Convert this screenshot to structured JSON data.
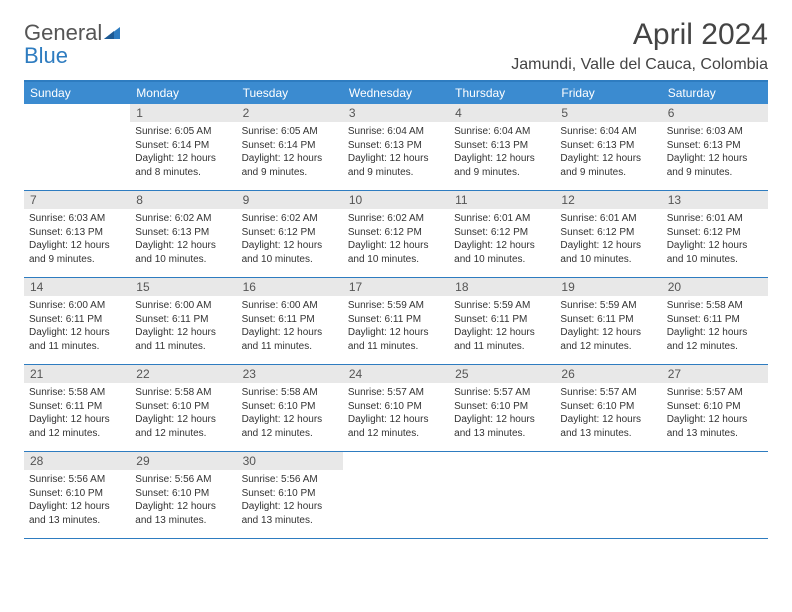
{
  "logo": {
    "word1": "General",
    "word2": "Blue"
  },
  "title": "April 2024",
  "location": "Jamundi, Valle del Cauca, Colombia",
  "colors": {
    "header_bg": "#3b8bd0",
    "header_border": "#2e7cc0",
    "daynum_bg": "#e8e8e8",
    "text": "#333333"
  },
  "weekdays": [
    "Sunday",
    "Monday",
    "Tuesday",
    "Wednesday",
    "Thursday",
    "Friday",
    "Saturday"
  ],
  "weeks": [
    [
      null,
      {
        "n": "1",
        "sr": "Sunrise: 6:05 AM",
        "ss": "Sunset: 6:14 PM",
        "d1": "Daylight: 12 hours",
        "d2": "and 8 minutes."
      },
      {
        "n": "2",
        "sr": "Sunrise: 6:05 AM",
        "ss": "Sunset: 6:14 PM",
        "d1": "Daylight: 12 hours",
        "d2": "and 9 minutes."
      },
      {
        "n": "3",
        "sr": "Sunrise: 6:04 AM",
        "ss": "Sunset: 6:13 PM",
        "d1": "Daylight: 12 hours",
        "d2": "and 9 minutes."
      },
      {
        "n": "4",
        "sr": "Sunrise: 6:04 AM",
        "ss": "Sunset: 6:13 PM",
        "d1": "Daylight: 12 hours",
        "d2": "and 9 minutes."
      },
      {
        "n": "5",
        "sr": "Sunrise: 6:04 AM",
        "ss": "Sunset: 6:13 PM",
        "d1": "Daylight: 12 hours",
        "d2": "and 9 minutes."
      },
      {
        "n": "6",
        "sr": "Sunrise: 6:03 AM",
        "ss": "Sunset: 6:13 PM",
        "d1": "Daylight: 12 hours",
        "d2": "and 9 minutes."
      }
    ],
    [
      {
        "n": "7",
        "sr": "Sunrise: 6:03 AM",
        "ss": "Sunset: 6:13 PM",
        "d1": "Daylight: 12 hours",
        "d2": "and 9 minutes."
      },
      {
        "n": "8",
        "sr": "Sunrise: 6:02 AM",
        "ss": "Sunset: 6:13 PM",
        "d1": "Daylight: 12 hours",
        "d2": "and 10 minutes."
      },
      {
        "n": "9",
        "sr": "Sunrise: 6:02 AM",
        "ss": "Sunset: 6:12 PM",
        "d1": "Daylight: 12 hours",
        "d2": "and 10 minutes."
      },
      {
        "n": "10",
        "sr": "Sunrise: 6:02 AM",
        "ss": "Sunset: 6:12 PM",
        "d1": "Daylight: 12 hours",
        "d2": "and 10 minutes."
      },
      {
        "n": "11",
        "sr": "Sunrise: 6:01 AM",
        "ss": "Sunset: 6:12 PM",
        "d1": "Daylight: 12 hours",
        "d2": "and 10 minutes."
      },
      {
        "n": "12",
        "sr": "Sunrise: 6:01 AM",
        "ss": "Sunset: 6:12 PM",
        "d1": "Daylight: 12 hours",
        "d2": "and 10 minutes."
      },
      {
        "n": "13",
        "sr": "Sunrise: 6:01 AM",
        "ss": "Sunset: 6:12 PM",
        "d1": "Daylight: 12 hours",
        "d2": "and 10 minutes."
      }
    ],
    [
      {
        "n": "14",
        "sr": "Sunrise: 6:00 AM",
        "ss": "Sunset: 6:11 PM",
        "d1": "Daylight: 12 hours",
        "d2": "and 11 minutes."
      },
      {
        "n": "15",
        "sr": "Sunrise: 6:00 AM",
        "ss": "Sunset: 6:11 PM",
        "d1": "Daylight: 12 hours",
        "d2": "and 11 minutes."
      },
      {
        "n": "16",
        "sr": "Sunrise: 6:00 AM",
        "ss": "Sunset: 6:11 PM",
        "d1": "Daylight: 12 hours",
        "d2": "and 11 minutes."
      },
      {
        "n": "17",
        "sr": "Sunrise: 5:59 AM",
        "ss": "Sunset: 6:11 PM",
        "d1": "Daylight: 12 hours",
        "d2": "and 11 minutes."
      },
      {
        "n": "18",
        "sr": "Sunrise: 5:59 AM",
        "ss": "Sunset: 6:11 PM",
        "d1": "Daylight: 12 hours",
        "d2": "and 11 minutes."
      },
      {
        "n": "19",
        "sr": "Sunrise: 5:59 AM",
        "ss": "Sunset: 6:11 PM",
        "d1": "Daylight: 12 hours",
        "d2": "and 12 minutes."
      },
      {
        "n": "20",
        "sr": "Sunrise: 5:58 AM",
        "ss": "Sunset: 6:11 PM",
        "d1": "Daylight: 12 hours",
        "d2": "and 12 minutes."
      }
    ],
    [
      {
        "n": "21",
        "sr": "Sunrise: 5:58 AM",
        "ss": "Sunset: 6:11 PM",
        "d1": "Daylight: 12 hours",
        "d2": "and 12 minutes."
      },
      {
        "n": "22",
        "sr": "Sunrise: 5:58 AM",
        "ss": "Sunset: 6:10 PM",
        "d1": "Daylight: 12 hours",
        "d2": "and 12 minutes."
      },
      {
        "n": "23",
        "sr": "Sunrise: 5:58 AM",
        "ss": "Sunset: 6:10 PM",
        "d1": "Daylight: 12 hours",
        "d2": "and 12 minutes."
      },
      {
        "n": "24",
        "sr": "Sunrise: 5:57 AM",
        "ss": "Sunset: 6:10 PM",
        "d1": "Daylight: 12 hours",
        "d2": "and 12 minutes."
      },
      {
        "n": "25",
        "sr": "Sunrise: 5:57 AM",
        "ss": "Sunset: 6:10 PM",
        "d1": "Daylight: 12 hours",
        "d2": "and 13 minutes."
      },
      {
        "n": "26",
        "sr": "Sunrise: 5:57 AM",
        "ss": "Sunset: 6:10 PM",
        "d1": "Daylight: 12 hours",
        "d2": "and 13 minutes."
      },
      {
        "n": "27",
        "sr": "Sunrise: 5:57 AM",
        "ss": "Sunset: 6:10 PM",
        "d1": "Daylight: 12 hours",
        "d2": "and 13 minutes."
      }
    ],
    [
      {
        "n": "28",
        "sr": "Sunrise: 5:56 AM",
        "ss": "Sunset: 6:10 PM",
        "d1": "Daylight: 12 hours",
        "d2": "and 13 minutes."
      },
      {
        "n": "29",
        "sr": "Sunrise: 5:56 AM",
        "ss": "Sunset: 6:10 PM",
        "d1": "Daylight: 12 hours",
        "d2": "and 13 minutes."
      },
      {
        "n": "30",
        "sr": "Sunrise: 5:56 AM",
        "ss": "Sunset: 6:10 PM",
        "d1": "Daylight: 12 hours",
        "d2": "and 13 minutes."
      },
      null,
      null,
      null,
      null
    ]
  ]
}
